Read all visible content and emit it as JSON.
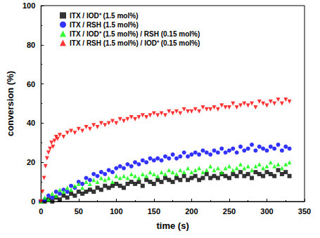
{
  "chart_data": {
    "type": "scatter",
    "x_label": "time (s)",
    "y_label": "conversion (%)",
    "xlim": [
      0,
      350
    ],
    "xticks": [
      0,
      50,
      100,
      150,
      200,
      250,
      300,
      350
    ],
    "ylim": [
      0,
      100
    ],
    "yticks": [
      0,
      20,
      40,
      60,
      80,
      100
    ],
    "grid": false,
    "legend": "upper left",
    "series": [
      {
        "name": "ITX / IOD⁺ (1.5 mol%)",
        "color": "#000000",
        "marker": "square",
        "x": [
          0,
          5,
          10,
          15,
          20,
          25,
          30,
          35,
          40,
          45,
          50,
          55,
          60,
          65,
          70,
          75,
          80,
          85,
          90,
          95,
          100,
          105,
          110,
          115,
          120,
          125,
          130,
          135,
          140,
          145,
          150,
          155,
          160,
          165,
          170,
          175,
          180,
          185,
          190,
          195,
          200,
          205,
          210,
          215,
          220,
          225,
          230,
          235,
          240,
          245,
          250,
          255,
          260,
          265,
          270,
          275,
          280,
          285,
          290,
          295,
          300,
          305,
          310,
          315,
          320,
          325,
          330
        ],
        "values": [
          0,
          0,
          1,
          0,
          2,
          1,
          3,
          2,
          4,
          3,
          5,
          4,
          5,
          6,
          5,
          7,
          6,
          8,
          7,
          8,
          9,
          8,
          7,
          9,
          10,
          9,
          10,
          8,
          11,
          10,
          9,
          11,
          10,
          12,
          11,
          10,
          12,
          11,
          13,
          11,
          12,
          13,
          11,
          12,
          14,
          12,
          13,
          12,
          14,
          13,
          12,
          14,
          13,
          15,
          13,
          14,
          12,
          15,
          14,
          13,
          15,
          14,
          13,
          16,
          14,
          15,
          13
        ]
      },
      {
        "name": "ITX / RSH (1.5 mol%)",
        "color": "#0000ff",
        "marker": "circle",
        "x": [
          0,
          5,
          10,
          15,
          20,
          25,
          30,
          35,
          40,
          45,
          50,
          55,
          60,
          65,
          70,
          75,
          80,
          85,
          90,
          95,
          100,
          105,
          110,
          115,
          120,
          125,
          130,
          135,
          140,
          145,
          150,
          155,
          160,
          165,
          170,
          175,
          180,
          185,
          190,
          195,
          200,
          205,
          210,
          215,
          220,
          225,
          230,
          235,
          240,
          245,
          250,
          255,
          260,
          265,
          270,
          275,
          280,
          285,
          290,
          295,
          300,
          305,
          310,
          315,
          320,
          325,
          330
        ],
        "values": [
          0,
          1,
          3,
          2,
          5,
          4,
          6,
          5,
          8,
          7,
          10,
          9,
          12,
          11,
          14,
          13,
          15,
          14,
          16,
          15,
          17,
          18,
          17,
          19,
          18,
          20,
          19,
          21,
          20,
          22,
          21,
          22,
          21,
          23,
          22,
          24,
          22,
          23,
          25,
          23,
          24,
          25,
          24,
          26,
          25,
          24,
          26,
          25,
          27,
          25,
          26,
          27,
          25,
          28,
          26,
          27,
          29,
          26,
          28,
          27,
          26,
          28,
          27,
          29,
          26,
          28,
          27
        ]
      },
      {
        "name": "ITX / IOD⁺ (1.5 mol%) / RSH (0.15 mol%)",
        "color": "#00ff00",
        "marker": "triangle",
        "x": [
          0,
          5,
          10,
          15,
          20,
          25,
          30,
          35,
          40,
          45,
          50,
          55,
          60,
          65,
          70,
          75,
          80,
          85,
          90,
          95,
          100,
          105,
          110,
          115,
          120,
          125,
          130,
          135,
          140,
          145,
          150,
          155,
          160,
          165,
          170,
          175,
          180,
          185,
          190,
          195,
          200,
          205,
          210,
          215,
          220,
          225,
          230,
          235,
          240,
          245,
          250,
          255,
          260,
          265,
          270,
          275,
          280,
          285,
          290,
          295,
          300,
          305,
          310,
          315,
          320,
          325,
          330
        ],
        "values": [
          0,
          2,
          1,
          4,
          3,
          6,
          5,
          7,
          6,
          8,
          9,
          7,
          10,
          9,
          11,
          10,
          12,
          11,
          12,
          10,
          13,
          12,
          13,
          12,
          14,
          13,
          12,
          14,
          13,
          15,
          14,
          13,
          15,
          14,
          16,
          15,
          14,
          16,
          15,
          17,
          15,
          16,
          17,
          15,
          16,
          18,
          16,
          17,
          15,
          17,
          18,
          16,
          17,
          19,
          17,
          18,
          16,
          18,
          19,
          17,
          18,
          20,
          18,
          19,
          17,
          19,
          20
        ]
      },
      {
        "name": "ITX / RSH (1.5 mol%) / IOD⁺ (0.15 mol%)",
        "color": "#ff0000",
        "marker": "triangle_down",
        "x": [
          0,
          2,
          4,
          6,
          8,
          10,
          12,
          14,
          16,
          18,
          20,
          22,
          25,
          30,
          35,
          40,
          45,
          50,
          55,
          60,
          65,
          70,
          75,
          80,
          85,
          90,
          95,
          100,
          105,
          110,
          115,
          120,
          125,
          130,
          135,
          140,
          145,
          150,
          155,
          160,
          165,
          170,
          175,
          180,
          185,
          190,
          195,
          200,
          205,
          210,
          215,
          220,
          225,
          230,
          235,
          240,
          245,
          250,
          255,
          260,
          265,
          270,
          275,
          280,
          285,
          290,
          295,
          300,
          305,
          310,
          315,
          320,
          325,
          330
        ],
        "values": [
          0,
          5,
          12,
          18,
          22,
          25,
          27,
          30,
          28,
          31,
          33,
          32,
          34,
          33,
          35,
          36,
          35,
          37,
          36,
          38,
          37,
          39,
          38,
          40,
          39,
          40,
          41,
          40,
          42,
          41,
          42,
          43,
          42,
          43,
          44,
          43,
          44,
          45,
          44,
          45,
          44,
          46,
          45,
          46,
          45,
          47,
          46,
          46,
          47,
          46,
          48,
          47,
          47,
          48,
          47,
          49,
          48,
          48,
          50,
          48,
          49,
          50,
          49,
          50,
          48,
          51,
          50,
          49,
          51,
          50,
          52,
          50,
          52,
          51
        ]
      }
    ]
  }
}
